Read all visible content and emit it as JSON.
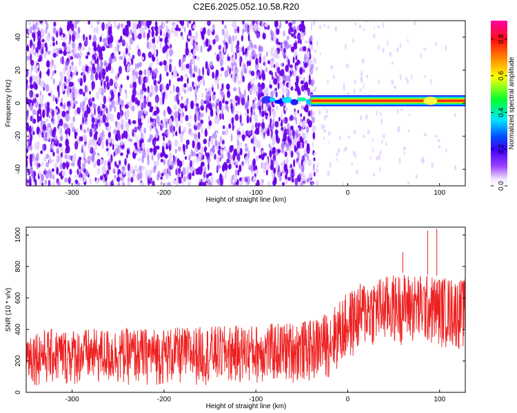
{
  "title": "C2E6.2025.052.10.58.R20",
  "colors": {
    "snr_trace": "#ee2020",
    "speckle_dark": "#6a00e8",
    "speckle_light": "#e6d2ff",
    "colormap": [
      "#ffffff",
      "#f2e6ff",
      "#7c00ff",
      "#0000ff",
      "#00e5ff",
      "#00ff00",
      "#ffff00",
      "#ff8000",
      "#ff0000",
      "#ff00a0"
    ]
  },
  "chart_data": [
    {
      "type": "heatmap",
      "xlabel": "Height of straight line (km)",
      "ylabel": "Frequency (Hz)",
      "xlim": [
        -350,
        128
      ],
      "ylim": [
        -50,
        50
      ],
      "xticks": [
        -300,
        -200,
        -100,
        0,
        100
      ],
      "yticks": [
        -40,
        -20,
        0,
        20,
        40
      ],
      "noise_region_x": [
        -350,
        -42
      ],
      "signal_band": {
        "frequency_hz": 1.5,
        "x_start": -92,
        "x_end": 128
      },
      "colorbar": {
        "label": "Normalized spectral amplitude",
        "range": [
          0.0,
          0.9
        ],
        "ticks": [
          "0.0",
          "0.2",
          "0.4",
          "0.6",
          "0.8"
        ]
      }
    },
    {
      "type": "line",
      "xlabel": "Height of straight line (km)",
      "ylabel": "SNR (10 * v/v)",
      "xlim": [
        -350,
        128
      ],
      "ylim": [
        0,
        1050
      ],
      "xticks": [
        -300,
        -200,
        -100,
        0,
        100
      ],
      "yticks": [
        0,
        200,
        400,
        600,
        800,
        1000
      ],
      "envelope": [
        {
          "x": -350,
          "low": 40,
          "high": 400
        },
        {
          "x": -200,
          "low": 40,
          "high": 410
        },
        {
          "x": -100,
          "low": 50,
          "high": 430
        },
        {
          "x": -40,
          "low": 60,
          "high": 460
        },
        {
          "x": -20,
          "low": 90,
          "high": 520
        },
        {
          "x": 0,
          "low": 180,
          "high": 640
        },
        {
          "x": 20,
          "low": 280,
          "high": 720
        },
        {
          "x": 60,
          "low": 300,
          "high": 760
        },
        {
          "x": 100,
          "low": 280,
          "high": 740
        },
        {
          "x": 128,
          "low": 260,
          "high": 720
        }
      ],
      "peaks": [
        {
          "x": 97,
          "y": 1040
        },
        {
          "x": 87,
          "y": 1030
        },
        {
          "x": 60,
          "y": 890
        }
      ]
    }
  ]
}
